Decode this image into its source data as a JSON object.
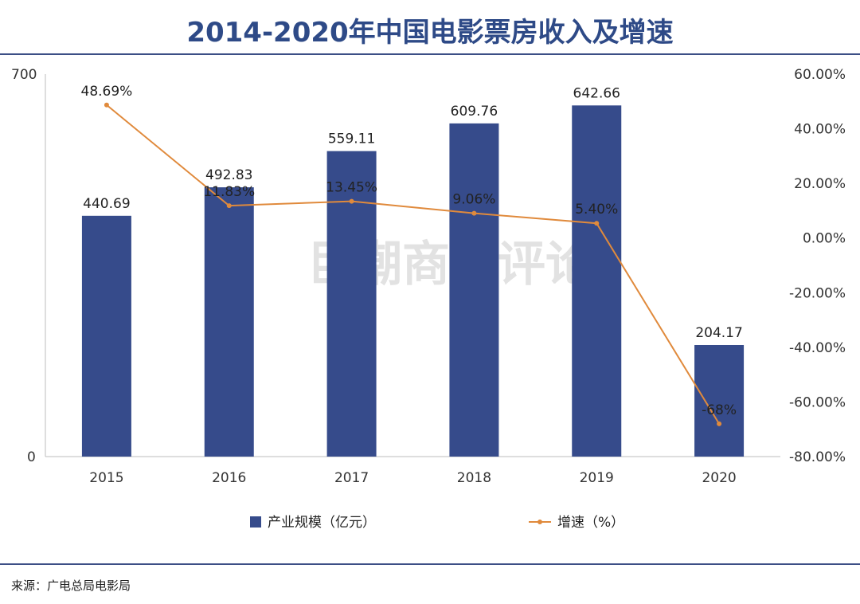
{
  "title": "2014-2020年中国电影票房收入及增速",
  "watermark": "巨潮商业评论",
  "source": "来源：广电总局电影局",
  "colors": {
    "bar": "#364b8b",
    "line": "#e08a3c",
    "title": "#2e4a87",
    "rule": "#3c4f86"
  },
  "chart_data": {
    "type": "bar",
    "categories": [
      "2015",
      "2016",
      "2017",
      "2018",
      "2019",
      "2020"
    ],
    "series": [
      {
        "name": "产业规模（亿元）",
        "type": "bar",
        "axis": "left",
        "values": [
          440.69,
          492.83,
          559.11,
          609.76,
          642.66,
          204.17
        ],
        "labels": [
          "440.69",
          "492.83",
          "559.11",
          "609.76",
          "642.66",
          "204.17"
        ]
      },
      {
        "name": "增速（%）",
        "type": "line",
        "axis": "right",
        "values": [
          48.69,
          11.83,
          13.45,
          9.06,
          5.4,
          -68
        ],
        "labels": [
          "48.69%",
          "11.83%",
          "13.45%",
          "9.06%",
          "5.40%",
          "-68%"
        ]
      }
    ],
    "y_left": {
      "min": 0,
      "max": 700,
      "tick_labels": [
        "0",
        "700"
      ]
    },
    "y_right": {
      "min": -80,
      "max": 60,
      "ticks": [
        60,
        40,
        20,
        0,
        -20,
        -40,
        -60,
        -80
      ],
      "tick_labels": [
        "60.00%",
        "40.00%",
        "20.00%",
        "0.00%",
        "-20.00%",
        "-40.00%",
        "-60.00%",
        "-80.00%"
      ]
    },
    "grid": false,
    "legend": "bottom"
  }
}
